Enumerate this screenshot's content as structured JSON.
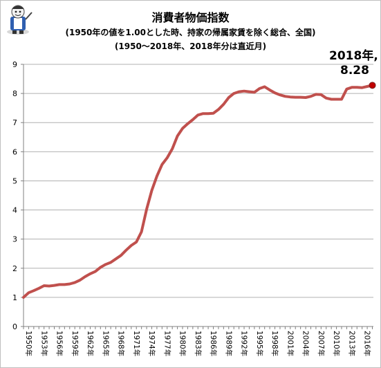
{
  "chart_data": {
    "type": "line",
    "title": "消費者物価指数",
    "subtitle_lines": [
      "(1950年の値を1.00とした時、持家の帰属家賃を除く総合、全国)",
      "(1950～2018年、2018年分は直近月)"
    ],
    "xlabel": "",
    "ylabel": "",
    "ylim": [
      0,
      9
    ],
    "y_ticks": [
      0,
      1,
      2,
      3,
      4,
      5,
      6,
      7,
      8,
      9
    ],
    "x_tick_labels": [
      "1950年",
      "1953年",
      "1956年",
      "1959年",
      "1962年",
      "1965年",
      "1968年",
      "1971年",
      "1974年",
      "1977年",
      "1980年",
      "1983年",
      "1986年",
      "1989年",
      "1992年",
      "1995年",
      "1998年",
      "2001年",
      "2004年",
      "2007年",
      "2010年",
      "2013年",
      "2016年"
    ],
    "grid": "horizontal",
    "legend": "none",
    "line_color": "#c0504d",
    "series": [
      {
        "x": [
          1950,
          1951,
          1952,
          1953,
          1954,
          1955,
          1956,
          1957,
          1958,
          1959,
          1960,
          1961,
          1962,
          1963,
          1964,
          1965,
          1966,
          1967,
          1968,
          1969,
          1970,
          1971,
          1972,
          1973,
          1974,
          1975,
          1976,
          1977,
          1978,
          1979,
          1980,
          1981,
          1982,
          1983,
          1984,
          1985,
          1986,
          1987,
          1988,
          1989,
          1990,
          1991,
          1992,
          1993,
          1994,
          1995,
          1996,
          1997,
          1998,
          1999,
          2000,
          2001,
          2002,
          2003,
          2004,
          2005,
          2006,
          2007,
          2008,
          2009,
          2010,
          2011,
          2012,
          2013,
          2014,
          2015,
          2016,
          2017,
          2018
        ],
        "values": [
          1.0,
          1.16,
          1.23,
          1.31,
          1.4,
          1.39,
          1.41,
          1.44,
          1.44,
          1.46,
          1.51,
          1.59,
          1.71,
          1.81,
          1.89,
          2.03,
          2.13,
          2.2,
          2.32,
          2.44,
          2.62,
          2.78,
          2.9,
          3.25,
          4.03,
          4.67,
          5.16,
          5.56,
          5.79,
          6.1,
          6.54,
          6.8,
          6.96,
          7.1,
          7.26,
          7.31,
          7.31,
          7.32,
          7.45,
          7.63,
          7.86,
          8.0,
          8.06,
          8.08,
          8.06,
          8.04,
          8.17,
          8.23,
          8.12,
          8.02,
          7.95,
          7.9,
          7.88,
          7.87,
          7.87,
          7.86,
          7.9,
          7.97,
          7.96,
          7.84,
          7.8,
          7.8,
          7.8,
          8.15,
          8.21,
          8.21,
          8.2,
          8.24,
          8.28
        ]
      }
    ],
    "annotation": {
      "label": "2018年,",
      "value_label": "8.28"
    }
  }
}
